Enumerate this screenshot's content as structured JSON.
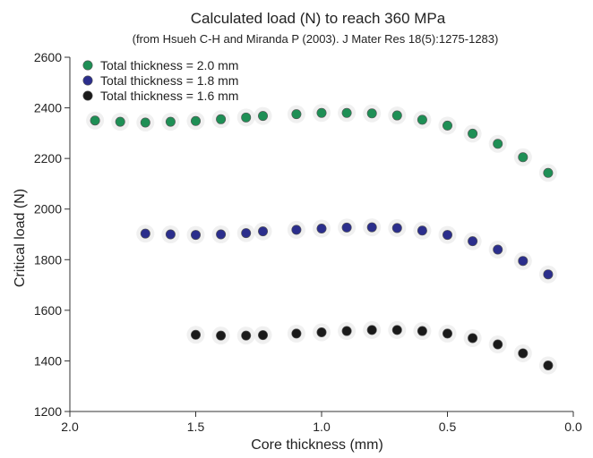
{
  "chart_data": {
    "type": "scatter",
    "title": "Calculated load (N) to reach 360 MPa",
    "subtitle": "(from Hsueh C-H and Miranda P (2003). J Mater Res 18(5):1275-1283)",
    "xlabel": "Core thickness (mm)",
    "ylabel": "Critical load (N)",
    "xlim": [
      2.0,
      0.0
    ],
    "ylim": [
      1200,
      2600
    ],
    "x_reversed": true,
    "xticks": [
      2.0,
      1.5,
      1.0,
      0.5,
      0.0
    ],
    "xtick_labels": [
      "2.0",
      "1.5",
      "1.0",
      "0.5",
      "0.0"
    ],
    "yticks": [
      1200,
      1400,
      1600,
      1800,
      2000,
      2200,
      2400,
      2600
    ],
    "ytick_labels": [
      "1200",
      "1400",
      "1600",
      "1800",
      "2000",
      "2200",
      "2400",
      "2600"
    ],
    "grid": false,
    "legend_position": "top-left",
    "series": [
      {
        "name": "Total thickness = 2.0 mm",
        "color": "#1e8f55",
        "x": [
          1.9,
          1.8,
          1.7,
          1.6,
          1.5,
          1.4,
          1.3,
          1.233,
          1.1,
          1.0,
          0.9,
          0.8,
          0.7,
          0.6,
          0.5,
          0.4,
          0.3,
          0.2,
          0.1
        ],
        "y": [
          2350,
          2345,
          2342,
          2345,
          2348,
          2355,
          2362,
          2368,
          2375,
          2380,
          2380,
          2378,
          2370,
          2353,
          2330,
          2298,
          2258,
          2205,
          2143
        ]
      },
      {
        "name": "Total thickness = 1.8 mm",
        "color": "#2b2e8c",
        "x": [
          1.7,
          1.6,
          1.5,
          1.4,
          1.3,
          1.233,
          1.1,
          1.0,
          0.9,
          0.8,
          0.7,
          0.6,
          0.5,
          0.4,
          0.3,
          0.2,
          0.1
        ],
        "y": [
          1903,
          1900,
          1898,
          1900,
          1905,
          1912,
          1918,
          1923,
          1927,
          1928,
          1925,
          1915,
          1898,
          1873,
          1840,
          1795,
          1742
        ]
      },
      {
        "name": "Total thickness = 1.6 mm",
        "color": "#1a1a1a",
        "x": [
          1.5,
          1.4,
          1.3,
          1.233,
          1.1,
          1.0,
          0.9,
          0.8,
          0.7,
          0.6,
          0.5,
          0.4,
          0.3,
          0.2,
          0.1
        ],
        "y": [
          1503,
          1500,
          1500,
          1502,
          1508,
          1513,
          1518,
          1522,
          1522,
          1518,
          1508,
          1490,
          1465,
          1430,
          1382
        ]
      }
    ]
  }
}
